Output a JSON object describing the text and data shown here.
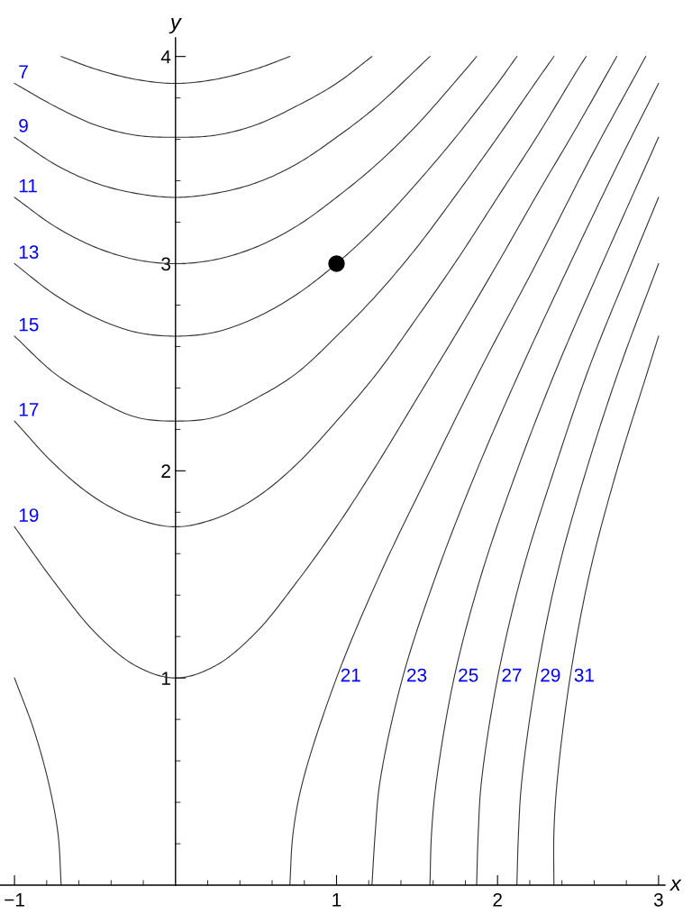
{
  "chart_data": {
    "type": "line",
    "xlabel": "x",
    "ylabel": "y",
    "xlim": [
      -1.09,
      3.04
    ],
    "ylim": [
      0,
      4.09
    ],
    "xticks": [
      -1,
      {
        "value": -0.8,
        "label": null
      },
      {
        "value": -0.6,
        "label": null
      },
      {
        "value": -0.4,
        "label": null
      },
      {
        "value": -0.2,
        "label": null
      },
      {
        "value": 0.2,
        "label": null
      },
      {
        "value": 0.4,
        "label": null
      },
      {
        "value": 0.6,
        "label": null
      },
      {
        "value": 0.8,
        "label": null
      },
      1,
      {
        "value": 1.2,
        "label": null
      },
      {
        "value": 1.4,
        "label": null
      },
      {
        "value": 1.6,
        "label": null
      },
      {
        "value": 1.8,
        "label": null
      },
      2,
      {
        "value": 2.2,
        "label": null
      },
      {
        "value": 2.4,
        "label": null
      },
      {
        "value": 2.6,
        "label": null
      },
      {
        "value": 2.8,
        "label": null
      },
      3
    ],
    "yticks": [
      {
        "value": 0.2,
        "label": null
      },
      {
        "value": 0.4,
        "label": null
      },
      {
        "value": 0.6,
        "label": null
      },
      {
        "value": 0.8,
        "label": null
      },
      1,
      {
        "value": 1.2,
        "label": null
      },
      {
        "value": 1.4,
        "label": null
      },
      {
        "value": 1.6,
        "label": null
      },
      {
        "value": 1.8,
        "label": null
      },
      2,
      {
        "value": 2.2,
        "label": null
      },
      {
        "value": 2.4,
        "label": null
      },
      {
        "value": 2.6,
        "label": null
      },
      {
        "value": 2.8,
        "label": null
      },
      3,
      {
        "value": 3.2,
        "label": null
      },
      {
        "value": 3.4,
        "label": null
      },
      {
        "value": 3.6,
        "label": null
      },
      {
        "value": 3.8,
        "label": null
      },
      4
    ],
    "grid": false,
    "legend": false,
    "series": [
      {
        "color": "#333333",
        "x": [
          -0.71,
          -0.5,
          -0.25,
          0,
          0.25,
          0.5,
          0.71
        ],
        "values": [
          4.0,
          3.94,
          3.89,
          3.87,
          3.89,
          3.94,
          4.0
        ]
      },
      {
        "color": "#333333",
        "x": [
          -1,
          -0.75,
          -0.5,
          -0.25,
          0,
          0.25,
          0.5,
          0.75,
          1,
          1.22
        ],
        "values": [
          3.87,
          3.76,
          3.67,
          3.62,
          3.61,
          3.62,
          3.67,
          3.76,
          3.87,
          4.0
        ]
      },
      {
        "color": "#333333",
        "x": [
          -1,
          -0.75,
          -0.5,
          -0.25,
          0,
          0.25,
          0.5,
          0.75,
          1,
          1.25,
          1.58
        ],
        "values": [
          3.61,
          3.48,
          3.39,
          3.34,
          3.32,
          3.34,
          3.39,
          3.48,
          3.61,
          3.76,
          4.0
        ]
      },
      {
        "color": "#333333",
        "x": [
          -1,
          -0.75,
          -0.5,
          -0.25,
          0,
          0.25,
          0.5,
          0.75,
          1,
          1.25,
          1.5,
          1.75,
          1.87
        ],
        "values": [
          3.32,
          3.18,
          3.08,
          3.02,
          3.0,
          3.02,
          3.08,
          3.18,
          3.32,
          3.48,
          3.67,
          3.89,
          4.0
        ]
      },
      {
        "color": "#333333",
        "x": [
          -1,
          -0.75,
          -0.5,
          -0.25,
          0,
          0.25,
          0.5,
          0.75,
          1,
          1.25,
          1.5,
          1.75,
          2,
          2.12
        ],
        "values": [
          3.0,
          2.85,
          2.74,
          2.67,
          2.65,
          2.67,
          2.74,
          2.85,
          3.0,
          3.18,
          3.39,
          3.62,
          3.87,
          4.0
        ]
      },
      {
        "color": "#333333",
        "x": [
          -1,
          -0.75,
          -0.5,
          -0.25,
          0,
          0.25,
          0.5,
          0.75,
          1,
          1.25,
          1.5,
          1.75,
          2,
          2.25,
          2.35
        ],
        "values": [
          2.65,
          2.47,
          2.35,
          2.26,
          2.24,
          2.26,
          2.35,
          2.47,
          2.65,
          2.85,
          3.08,
          3.34,
          3.61,
          3.89,
          4.0
        ]
      },
      {
        "color": "#333333",
        "x": [
          -1,
          -0.75,
          -0.5,
          -0.25,
          0,
          0.25,
          0.5,
          0.75,
          1,
          1.25,
          1.5,
          1.75,
          2,
          2.25,
          2.5,
          2.55
        ],
        "values": [
          2.24,
          2.03,
          1.87,
          1.77,
          1.73,
          1.77,
          1.87,
          2.03,
          2.24,
          2.47,
          2.74,
          3.02,
          3.32,
          3.62,
          3.94,
          4.0
        ]
      },
      {
        "color": "#333333",
        "x": [
          -1,
          -0.75,
          -0.5,
          -0.25,
          0,
          0.25,
          0.5,
          0.75,
          1,
          1.25,
          1.5,
          1.75,
          2,
          2.25,
          2.5,
          2.74
        ],
        "values": [
          1.73,
          1.46,
          1.22,
          1.06,
          1.0,
          1.06,
          1.22,
          1.46,
          1.73,
          2.03,
          2.35,
          2.67,
          3.0,
          3.34,
          3.67,
          4.0
        ]
      },
      {
        "color": "#333333",
        "x": [
          -0.71,
          -0.73,
          -0.79,
          -0.88,
          -1
        ],
        "values": [
          0,
          0.25,
          0.5,
          0.75,
          1
        ]
      },
      {
        "color": "#333333",
        "x": [
          0.71,
          0.73,
          0.79,
          1.0,
          1.27,
          1.58,
          1.9,
          2.24,
          2.57,
          2.92
        ],
        "values": [
          0,
          0.25,
          0.5,
          1,
          1.5,
          2,
          2.5,
          3,
          3.5,
          4
        ]
      },
      {
        "color": "#333333",
        "x": [
          1.22,
          1.24,
          1.27,
          1.41,
          1.62,
          1.87,
          2.15,
          2.45,
          2.76,
          3.0
        ],
        "values": [
          0,
          0.25,
          0.5,
          1,
          1.5,
          2,
          2.5,
          3,
          3.5,
          3.87
        ]
      },
      {
        "color": "#333333",
        "x": [
          1.58,
          1.59,
          1.62,
          1.73,
          1.9,
          2.12,
          2.37,
          2.65,
          3.0
        ],
        "values": [
          0,
          0.25,
          0.5,
          1,
          1.5,
          2,
          2.5,
          3,
          3.61
        ]
      },
      {
        "color": "#333333",
        "x": [
          1.87,
          1.88,
          1.9,
          2.0,
          2.15,
          2.35,
          2.57,
          2.83,
          3.0
        ],
        "values": [
          0,
          0.25,
          0.5,
          1,
          1.5,
          2,
          2.5,
          3,
          3.32
        ]
      },
      {
        "color": "#333333",
        "x": [
          2.12,
          2.13,
          2.15,
          2.24,
          2.37,
          2.55,
          2.76,
          3.0
        ],
        "values": [
          0,
          0.25,
          0.5,
          1,
          1.5,
          2,
          2.5,
          3
        ]
      },
      {
        "color": "#333333",
        "x": [
          2.35,
          2.35,
          2.37,
          2.45,
          2.57,
          2.74,
          2.94,
          3.0
        ],
        "values": [
          0,
          0.25,
          0.5,
          1,
          1.5,
          2,
          2.5,
          2.65
        ]
      },
      {
        "type": "scatter",
        "marker": "circle",
        "color": "#000000",
        "x": [
          1
        ],
        "values": [
          3
        ]
      }
    ],
    "annotations": [
      {
        "text": "7",
        "x": -1,
        "y": 3.87
      },
      {
        "text": "9",
        "x": -1,
        "y": 3.61
      },
      {
        "text": "11",
        "x": -1,
        "y": 3.32
      },
      {
        "text": "13",
        "x": -1,
        "y": 3.0
      },
      {
        "text": "15",
        "x": -1,
        "y": 2.65
      },
      {
        "text": "17",
        "x": -1,
        "y": 2.24
      },
      {
        "text": "19",
        "x": -1,
        "y": 1.73
      },
      {
        "text": "21",
        "x": 1.0,
        "y": 1.0
      },
      {
        "text": "23",
        "x": 1.41,
        "y": 1.0
      },
      {
        "text": "25",
        "x": 1.73,
        "y": 1.0
      },
      {
        "text": "27",
        "x": 2.0,
        "y": 1.0
      },
      {
        "text": "29",
        "x": 2.24,
        "y": 1.0
      },
      {
        "text": "31",
        "x": 2.45,
        "y": 1.0
      }
    ]
  }
}
